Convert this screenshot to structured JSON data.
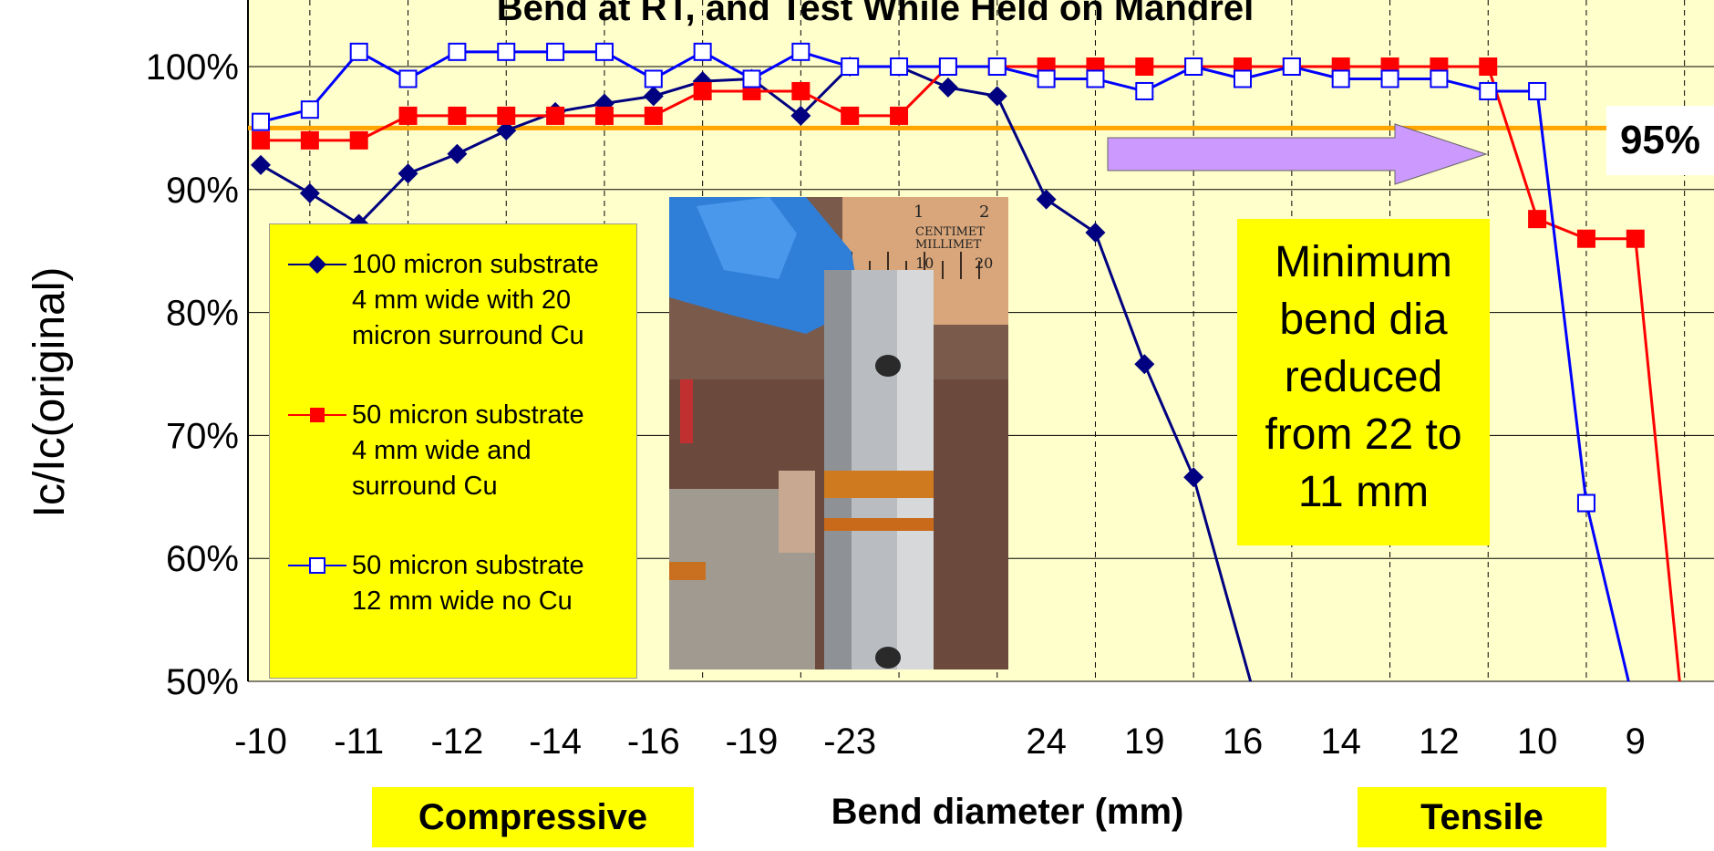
{
  "chart_data": {
    "type": "line",
    "title": "Bend at RT, and Test While Held on Mandrel",
    "ylabel": "Ic/Ic(original)",
    "xlabel": "Bend diameter (mm)",
    "y_ticks": [
      "50%",
      "60%",
      "70%",
      "80%",
      "90%",
      "100%"
    ],
    "ylim": [
      0.5,
      1.05
    ],
    "x_ticks": [
      "-10",
      "-11",
      "-12",
      "-14",
      "-16",
      "-19",
      "-23",
      "24",
      "19",
      "16",
      "14",
      "12",
      "10",
      "9"
    ],
    "x_tick_positions": [
      0,
      1,
      2,
      3,
      4,
      5,
      6,
      8,
      9,
      10,
      11,
      12,
      13,
      14
    ],
    "x_range": [
      -0.3,
      14.8
    ],
    "grid": "vertical dashed at each position, horizontal solid at each y tick",
    "plot_background": "#ffffcc",
    "reference_line": {
      "y": 0.95,
      "label": "95%",
      "color": "#ffa500"
    },
    "series": [
      {
        "name": "100 micron substrate 4 mm wide with 20 micron surround Cu",
        "color": "#000080",
        "marker": "filled-diamond",
        "x": [
          0,
          0.5,
          1,
          1.5,
          2,
          2.5,
          3,
          3.5,
          4,
          4.5,
          5,
          5.5,
          6,
          6.5,
          7,
          7.5,
          8,
          8.5,
          9,
          9.5,
          10.08
        ],
        "y": [
          0.92,
          0.897,
          0.872,
          0.913,
          0.929,
          0.948,
          0.963,
          0.97,
          0.976,
          0.988,
          0.99,
          0.96,
          1.0,
          1.0,
          0.983,
          0.976,
          0.892,
          0.865,
          0.758,
          0.666,
          0.5
        ]
      },
      {
        "name": "50 micron substrate 4 mm wide and surround Cu",
        "color": "#ff0000",
        "marker": "filled-square",
        "x": [
          0,
          0.5,
          1,
          1.5,
          2,
          2.5,
          3,
          3.5,
          4,
          4.5,
          5,
          5.5,
          6,
          6.5,
          7,
          7.5,
          8,
          8.5,
          9,
          9.5,
          10,
          10.5,
          11,
          11.5,
          12,
          12.5,
          13,
          13.5,
          14,
          14.45
        ],
        "y": [
          0.94,
          0.94,
          0.94,
          0.96,
          0.96,
          0.96,
          0.96,
          0.96,
          0.96,
          0.98,
          0.98,
          0.98,
          0.96,
          0.96,
          1.0,
          1.0,
          1.0,
          1.0,
          1.0,
          1.0,
          1.0,
          1.0,
          1.0,
          1.0,
          1.0,
          1.0,
          0.876,
          0.86,
          0.86,
          0.5
        ]
      },
      {
        "name": "50 micron substrate 12 mm wide no Cu",
        "color": "#0000ff",
        "marker": "open-square",
        "x": [
          0,
          0.5,
          1,
          1.5,
          2,
          2.5,
          3,
          3.5,
          4,
          4.5,
          5,
          5.5,
          6,
          6.5,
          7,
          7.5,
          8,
          8.5,
          9,
          9.5,
          10,
          10.5,
          11,
          11.5,
          12,
          12.5,
          13,
          13.5,
          13.93
        ],
        "y": [
          0.955,
          0.965,
          1.012,
          0.99,
          1.012,
          1.012,
          1.012,
          1.012,
          0.99,
          1.012,
          0.99,
          1.012,
          1.0,
          1.0,
          1.0,
          1.0,
          0.99,
          0.99,
          0.98,
          1.0,
          0.99,
          1.0,
          0.99,
          0.99,
          0.99,
          0.98,
          0.98,
          0.645,
          0.5
        ]
      }
    ],
    "legend": [
      "100 micron substrate\n4 mm wide with 20\nmicron surround Cu",
      "50 micron substrate\n4 mm wide and\nsurround Cu",
      "50 micron substrate\n12 mm wide no Cu"
    ],
    "annotations": {
      "note": "Minimum\nbend dia\nreduced\nfrom 22 to\n11 mm",
      "compressive": "Compressive",
      "tensile": "Tensile",
      "arrow_color": "#cc99ff",
      "photo_scale_text_1": "CENTIMET",
      "photo_scale_text_2": "MILLIMET",
      "photo_scale_numbers": [
        "1",
        "2",
        "10",
        "20"
      ]
    }
  }
}
